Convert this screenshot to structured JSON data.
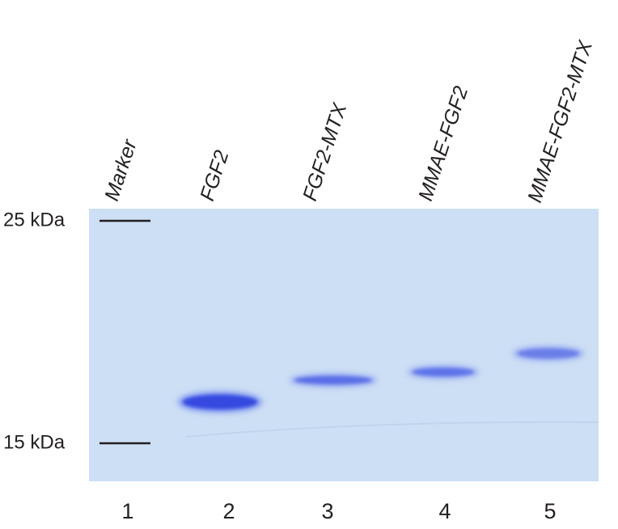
{
  "figure": {
    "lanes": [
      {
        "label": "Marker",
        "number": "1"
      },
      {
        "label": "FGF2",
        "number": "2"
      },
      {
        "label": "FGF2-MTX",
        "number": "3"
      },
      {
        "label": "MMAE-FGF2",
        "number": "4"
      },
      {
        "label": "MMAE-FGF2-MTX",
        "number": "5"
      }
    ],
    "markers": [
      "25 kDa",
      "15 kDa"
    ]
  }
}
